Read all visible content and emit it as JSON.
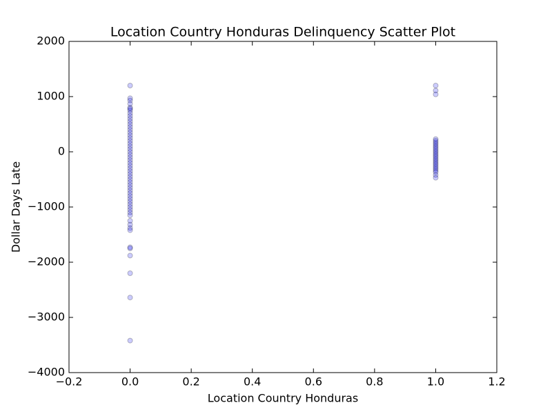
{
  "chart_data": {
    "type": "scatter",
    "title": "Location Country Honduras Delinquency Scatter Plot",
    "x_label": "Location Country Honduras",
    "y_label": "Dollar Days Late",
    "color": "#0000ff",
    "edge_color": "#000000",
    "xlim": [
      -0.2,
      1.2
    ],
    "ylim": [
      -4000,
      2000
    ],
    "xticks": [
      {
        "value": -0.2,
        "label": "−0.2"
      },
      {
        "value": 0,
        "label": "0.0"
      },
      0.2,
      0.4,
      0.6,
      0.8,
      {
        "value": 1,
        "label": "1.0"
      },
      1.2
    ],
    "yticks": [
      {
        "value": -4000,
        "label": "−4000"
      },
      {
        "value": -3000,
        "label": "−3000"
      },
      {
        "value": -2000,
        "label": "−2000"
      },
      {
        "value": -1000,
        "label": "−1000"
      },
      0,
      1000,
      2000
    ],
    "x": [
      0,
      0,
      0,
      0,
      0,
      0,
      0,
      0,
      0,
      0,
      0,
      0,
      0,
      0,
      0,
      0,
      0,
      0,
      0,
      0,
      0,
      0,
      0,
      0,
      0,
      0,
      0,
      0,
      0,
      0,
      0,
      0,
      0,
      0,
      0,
      0,
      0,
      0,
      0,
      0,
      0,
      0,
      0,
      0,
      0,
      0,
      0,
      0,
      0,
      0,
      0,
      0,
      0,
      0,
      0,
      1,
      1,
      1,
      1,
      1,
      1,
      1,
      1,
      1,
      1,
      1,
      1,
      1,
      1,
      1,
      1,
      1,
      1,
      1,
      1,
      1,
      1,
      1,
      1,
      1,
      1
    ],
    "y": [
      1200,
      970,
      930,
      870,
      800,
      780,
      750,
      700,
      650,
      600,
      550,
      500,
      450,
      400,
      350,
      300,
      250,
      200,
      150,
      100,
      50,
      0,
      -50,
      -100,
      -150,
      -200,
      -250,
      -300,
      -350,
      -400,
      -450,
      -500,
      -550,
      -600,
      -650,
      -700,
      -750,
      -800,
      -850,
      -900,
      -950,
      -1000,
      -1050,
      -1100,
      -1150,
      -1250,
      -1320,
      -1380,
      -1420,
      -1730,
      -1750,
      -1880,
      -2200,
      -2640,
      -3420,
      1200,
      1110,
      1040,
      230,
      200,
      170,
      140,
      110,
      80,
      50,
      20,
      -10,
      -40,
      -70,
      -100,
      -130,
      -160,
      -190,
      -220,
      -250,
      -280,
      -310,
      -340,
      -370,
      -420,
      -470
    ]
  }
}
